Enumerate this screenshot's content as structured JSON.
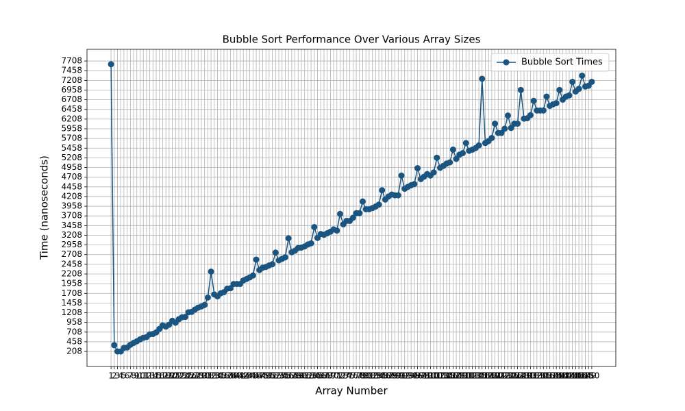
{
  "chart_data": {
    "type": "line",
    "title": "Bubble Sort Performance Over Various Array Sizes",
    "xlabel": "Array Number",
    "ylabel": "Time (nanoseconds)",
    "x": [
      1,
      2,
      3,
      4,
      5,
      6,
      7,
      8,
      9,
      10,
      11,
      12,
      13,
      14,
      15,
      16,
      17,
      18,
      19,
      20,
      21,
      22,
      23,
      24,
      25,
      26,
      27,
      28,
      29,
      30,
      31,
      32,
      33,
      34,
      35,
      36,
      37,
      38,
      39,
      40,
      41,
      42,
      43,
      44,
      45,
      46,
      47,
      48,
      49,
      50,
      51,
      52,
      53,
      54,
      55,
      56,
      57,
      58,
      59,
      60,
      61,
      62,
      63,
      64,
      65,
      66,
      67,
      68,
      69,
      70,
      71,
      72,
      73,
      74,
      75,
      76,
      77,
      78,
      79,
      80,
      81,
      82,
      83,
      84,
      85,
      86,
      87,
      88,
      89,
      90,
      91,
      92,
      93,
      94,
      95,
      96,
      97,
      98,
      99,
      100,
      101,
      102,
      103,
      104,
      105,
      106,
      107,
      108,
      109,
      110,
      111,
      112,
      113,
      114,
      115,
      116,
      117,
      118,
      119,
      120,
      121,
      122,
      123,
      124,
      125,
      126,
      127,
      128,
      129,
      130,
      131,
      132,
      133,
      134,
      135,
      136,
      137,
      138,
      139,
      140,
      141,
      142,
      143,
      144,
      145,
      146,
      147,
      148,
      149,
      150
    ],
    "series": [
      {
        "name": "Bubble Sort Times",
        "color": "#1a5581",
        "values": [
          7625,
          370,
          208,
          208,
          300,
          310,
          380,
          430,
          470,
          520,
          560,
          580,
          650,
          660,
          700,
          790,
          880,
          850,
          900,
          1000,
          950,
          1040,
          1090,
          1100,
          1220,
          1230,
          1290,
          1340,
          1370,
          1410,
          1600,
          2270,
          1680,
          1630,
          1710,
          1740,
          1830,
          1840,
          1950,
          1950,
          1950,
          2040,
          2080,
          2120,
          2170,
          2580,
          2310,
          2370,
          2390,
          2430,
          2460,
          2760,
          2560,
          2600,
          2640,
          3130,
          2770,
          2810,
          2880,
          2890,
          2920,
          2970,
          3000,
          3420,
          3140,
          3240,
          3220,
          3260,
          3300,
          3360,
          3330,
          3760,
          3490,
          3580,
          3580,
          3660,
          3780,
          3780,
          4080,
          3880,
          3880,
          3910,
          3950,
          4000,
          4370,
          4130,
          4210,
          4260,
          4240,
          4240,
          4750,
          4410,
          4460,
          4500,
          4530,
          4940,
          4660,
          4720,
          4790,
          4750,
          4830,
          5210,
          4950,
          5000,
          5060,
          5090,
          5420,
          5180,
          5290,
          5330,
          5590,
          5390,
          5420,
          5460,
          5530,
          7250,
          5590,
          5640,
          5720,
          6090,
          5850,
          5850,
          5960,
          6300,
          5980,
          6090,
          6090,
          6960,
          6220,
          6230,
          6310,
          6680,
          6430,
          6430,
          6430,
          6790,
          6550,
          6590,
          6620,
          6960,
          6710,
          6790,
          6820,
          7170,
          6920,
          6990,
          7330,
          7050,
          7070,
          7170
        ]
      }
    ],
    "xlim": [
      -6.45,
      157.45
    ],
    "xticks": [
      1,
      2,
      3,
      4,
      5,
      6,
      7,
      8,
      9,
      10,
      11,
      12,
      13,
      14,
      15,
      16,
      17,
      18,
      19,
      20,
      21,
      22,
      23,
      24,
      25,
      26,
      27,
      28,
      29,
      30,
      31,
      32,
      33,
      34,
      35,
      36,
      37,
      38,
      39,
      40,
      41,
      42,
      43,
      44,
      45,
      46,
      47,
      48,
      49,
      50,
      51,
      52,
      53,
      54,
      55,
      56,
      57,
      58,
      59,
      60,
      61,
      62,
      63,
      64,
      65,
      66,
      67,
      68,
      69,
      70,
      71,
      72,
      73,
      74,
      75,
      76,
      77,
      78,
      79,
      80,
      81,
      82,
      83,
      84,
      85,
      86,
      87,
      88,
      89,
      90,
      91,
      92,
      93,
      94,
      95,
      96,
      97,
      98,
      99,
      100,
      101,
      102,
      103,
      104,
      105,
      106,
      107,
      108,
      109,
      110,
      111,
      112,
      113,
      114,
      115,
      116,
      117,
      118,
      119,
      120,
      121,
      122,
      123,
      124,
      125,
      126,
      127,
      128,
      129,
      130,
      131,
      132,
      133,
      134,
      135,
      136,
      137,
      138,
      139,
      140,
      141,
      142,
      143,
      144,
      145,
      146,
      147,
      148,
      149,
      150
    ],
    "ylim": [
      -180,
      8010
    ],
    "yticks": [
      208,
      458,
      708,
      958,
      1208,
      1458,
      1708,
      1958,
      2208,
      2458,
      2708,
      2958,
      3208,
      3458,
      3708,
      3958,
      4208,
      4458,
      4708,
      4958,
      5208,
      5458,
      5708,
      5958,
      6208,
      6458,
      6708,
      6958,
      7208,
      7458,
      7708
    ],
    "grid": true,
    "legend": "upper right"
  }
}
